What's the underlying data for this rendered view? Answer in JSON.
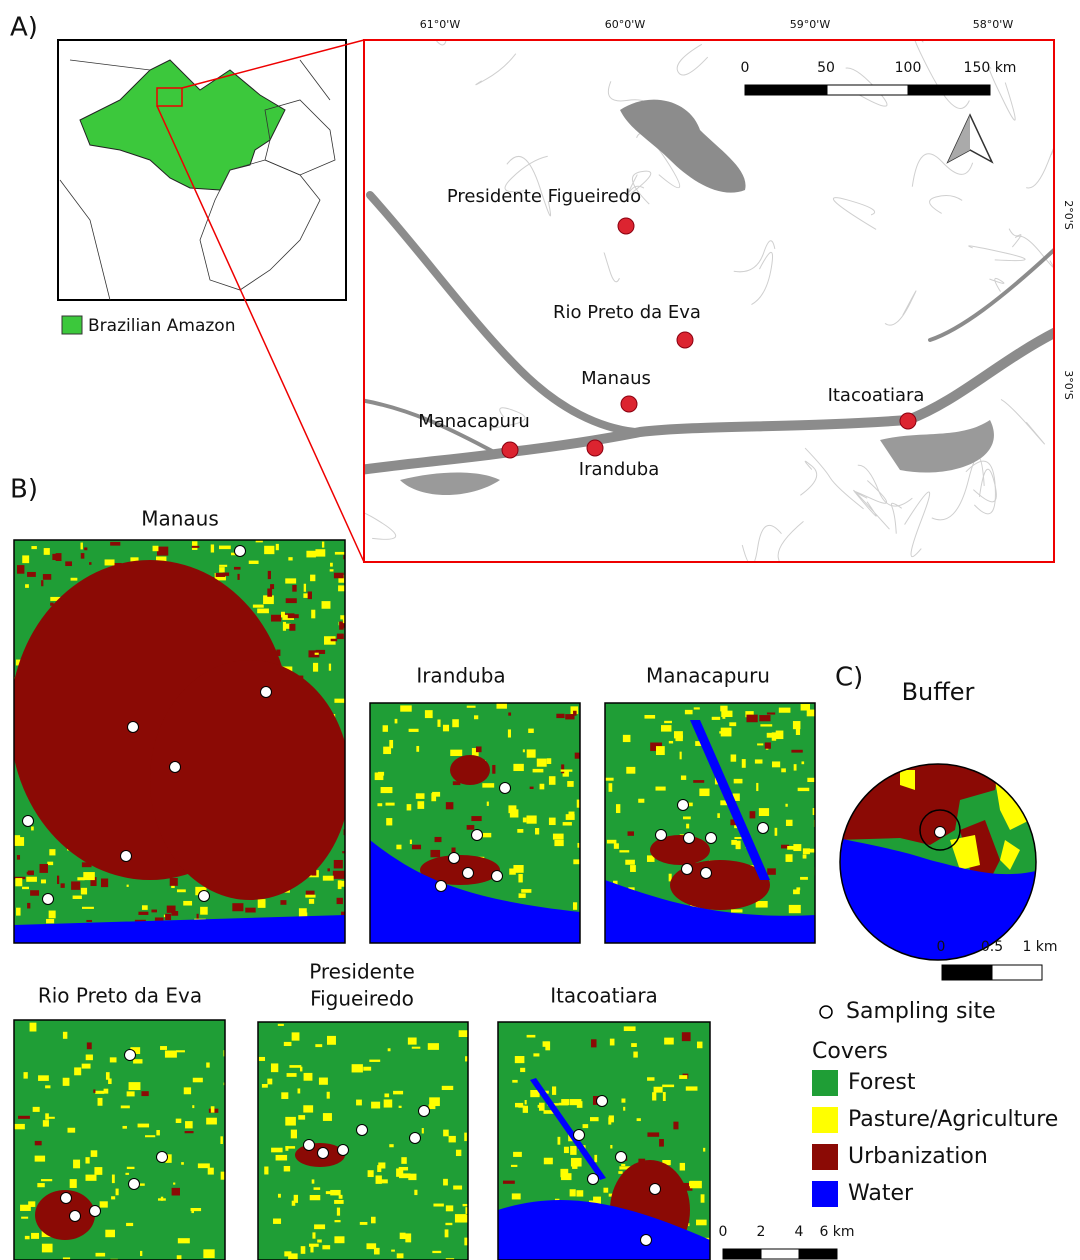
{
  "panel_labels": [
    "A)",
    "B)",
    "C)"
  ],
  "inset": {
    "legend": "Brazilian Amazon"
  },
  "map_a": {
    "lon_labels": [
      "61°0'W",
      "60°0'W",
      "59°0'W",
      "58°0'W"
    ],
    "lat_labels": [
      "2°0'S",
      "3°0'S"
    ],
    "scale_labels": [
      "0",
      "50",
      "100",
      "150 km"
    ],
    "cities": [
      "Presidente Figueiredo",
      "Rio Preto da Eva",
      "Manaus",
      "Itacoatiara",
      "Manacapuru",
      "Iranduba"
    ]
  },
  "panel_b": {
    "maps": [
      {
        "title": "Manaus"
      },
      {
        "title": "Iranduba"
      },
      {
        "title": "Manacapuru"
      },
      {
        "title": "Rio Preto da Eva"
      },
      {
        "title": [
          "Presidente",
          "Figueiredo"
        ]
      },
      {
        "title": "Itacoatiara"
      }
    ],
    "scale_labels": [
      "0",
      "2",
      "4",
      "6 km"
    ]
  },
  "panel_c": {
    "title": "Buffer",
    "scale_labels": [
      "0",
      "0.5",
      "1 km"
    ]
  },
  "legend": {
    "sampling_site": "Sampling site",
    "covers_title": "Covers",
    "covers": [
      "Forest",
      "Pasture/Agriculture",
      "Urbanization",
      "Water"
    ]
  }
}
